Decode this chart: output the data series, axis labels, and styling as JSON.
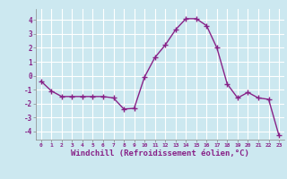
{
  "x": [
    0,
    1,
    2,
    3,
    4,
    5,
    6,
    7,
    8,
    9,
    10,
    11,
    12,
    13,
    14,
    15,
    16,
    17,
    18,
    19,
    20,
    21,
    22,
    23
  ],
  "y": [
    -0.4,
    -1.1,
    -1.5,
    -1.5,
    -1.5,
    -1.5,
    -1.5,
    -1.6,
    -2.4,
    -2.35,
    -0.1,
    1.3,
    2.2,
    3.3,
    4.1,
    4.1,
    3.6,
    2.0,
    -0.6,
    -1.6,
    -1.2,
    -1.6,
    -1.7,
    -4.3
  ],
  "line_color": "#882288",
  "marker": "+",
  "markersize": 4,
  "linewidth": 1.0,
  "xlabel": "Windchill (Refroidissement éolien,°C)",
  "xlabel_fontsize": 6.5,
  "bg_color": "#cce8f0",
  "grid_color": "#ffffff",
  "tick_label_color": "#882288",
  "ylim": [
    -4.6,
    4.8
  ],
  "yticks": [
    -4,
    -3,
    -2,
    -1,
    0,
    1,
    2,
    3,
    4
  ],
  "xticks": [
    0,
    1,
    2,
    3,
    4,
    5,
    6,
    7,
    8,
    9,
    10,
    11,
    12,
    13,
    14,
    15,
    16,
    17,
    18,
    19,
    20,
    21,
    22,
    23
  ],
  "xlim": [
    -0.5,
    23.5
  ]
}
